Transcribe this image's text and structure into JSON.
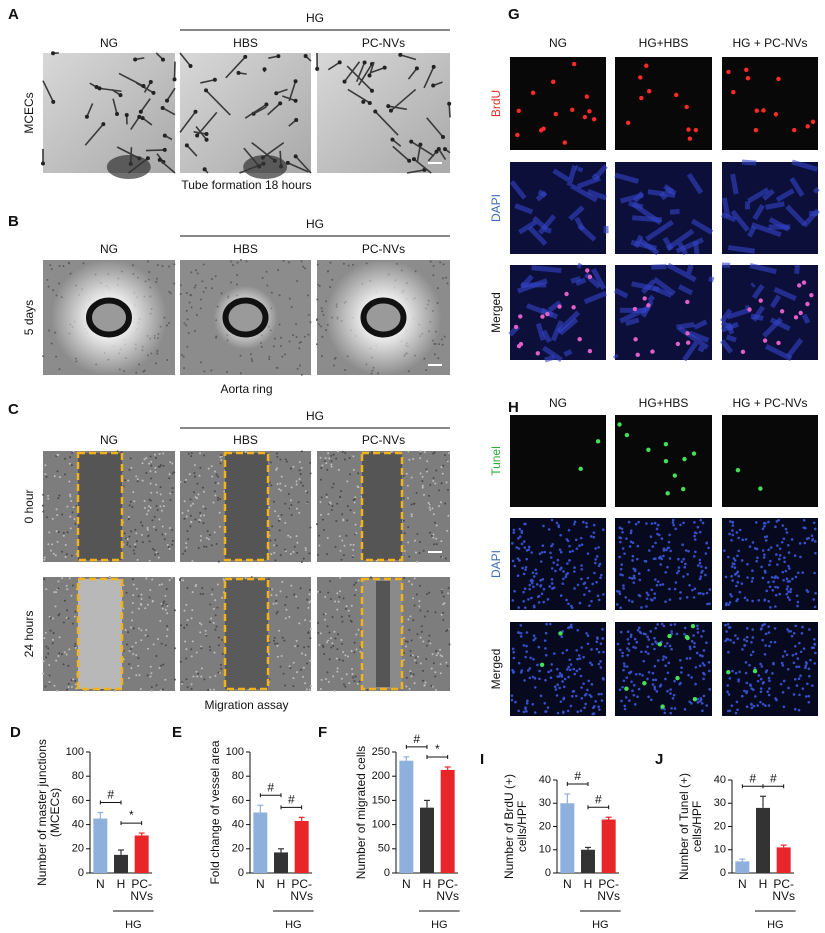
{
  "panels": [
    {
      "letter": "A",
      "group": "HG",
      "columns": [
        "NG",
        "HBS",
        "PC-NVs"
      ],
      "rows": [
        "MCECs"
      ],
      "caption": "Tube formation 18 hours"
    },
    {
      "letter": "B",
      "group": "HG",
      "columns": [
        "NG",
        "HBS",
        "PC-NVs"
      ],
      "rows": [
        "5 days"
      ],
      "caption": "Aorta ring"
    },
    {
      "letter": "C",
      "group": "HG",
      "columns": [
        "NG",
        "HBS",
        "PC-NVs"
      ],
      "rows": [
        "0 hour",
        "24 hours"
      ],
      "caption": "Migration assay"
    },
    {
      "letter": "G",
      "columns": [
        "NG",
        "HG+HBS",
        "HG + PC-NVs"
      ],
      "rows": [
        "BrdU",
        "DAPI",
        "Merged"
      ]
    },
    {
      "letter": "H",
      "columns": [
        "NG",
        "HG+HBS",
        "HG + PC-NVs"
      ],
      "rows": [
        "Tunel",
        "DAPI",
        "Merged"
      ]
    }
  ],
  "chart_data": [
    {
      "type": "bar",
      "panel": "D",
      "ylabel": [
        "Number of master junctions",
        "(MCECs)"
      ],
      "categories": [
        "N",
        "H",
        "PC-NVs"
      ],
      "group": "HG",
      "values": [
        45,
        15,
        31
      ],
      "errors": [
        5,
        4,
        2
      ],
      "colors": [
        "#8eb0dc",
        "#333333",
        "#e8262a"
      ],
      "ylim": [
        0,
        100
      ],
      "yticks": [
        0,
        20,
        40,
        60,
        80,
        100
      ],
      "comparisons": [
        {
          "label": "#",
          "between": [
            "N",
            "H"
          ]
        },
        {
          "label": "*",
          "between": [
            "H",
            "PC-NVs"
          ]
        }
      ]
    },
    {
      "type": "bar",
      "panel": "E",
      "ylabel": [
        "Fold change of vessel area"
      ],
      "categories": [
        "N",
        "H",
        "PC-NVs"
      ],
      "group": "HG",
      "values": [
        50,
        17,
        43
      ],
      "errors": [
        6,
        3,
        3
      ],
      "colors": [
        "#8eb0dc",
        "#333333",
        "#e8262a"
      ],
      "ylim": [
        0,
        100
      ],
      "yticks": [
        0,
        20,
        40,
        60,
        80,
        100
      ],
      "comparisons": [
        {
          "label": "#",
          "between": [
            "N",
            "H"
          ]
        },
        {
          "label": "#",
          "between": [
            "H",
            "PC-NVs"
          ]
        }
      ]
    },
    {
      "type": "bar",
      "panel": "F",
      "ylabel": [
        "Number of migrated cells"
      ],
      "categories": [
        "N",
        "H",
        "PC-NVs"
      ],
      "group": "HG",
      "values": [
        232,
        135,
        213
      ],
      "errors": [
        8,
        15,
        6
      ],
      "colors": [
        "#8eb0dc",
        "#333333",
        "#e8262a"
      ],
      "ylim": [
        0,
        250
      ],
      "yticks": [
        0,
        50,
        100,
        150,
        200,
        250
      ],
      "comparisons": [
        {
          "label": "#",
          "between": [
            "N",
            "H"
          ]
        },
        {
          "label": "*",
          "between": [
            "H",
            "PC-NVs"
          ]
        }
      ]
    },
    {
      "type": "bar",
      "panel": "I",
      "ylabel": [
        "Number of BrdU (+)",
        "cells/HPF"
      ],
      "categories": [
        "N",
        "H",
        "PC-NVs"
      ],
      "group": "HG",
      "values": [
        30,
        10,
        23
      ],
      "errors": [
        4,
        1,
        1
      ],
      "colors": [
        "#8eb0dc",
        "#333333",
        "#e8262a"
      ],
      "ylim": [
        0,
        40
      ],
      "yticks": [
        0,
        10,
        20,
        30,
        40
      ],
      "comparisons": [
        {
          "label": "#",
          "between": [
            "N",
            "H"
          ]
        },
        {
          "label": "#",
          "between": [
            "H",
            "PC-NVs"
          ]
        }
      ]
    },
    {
      "type": "bar",
      "panel": "J",
      "ylabel": [
        "Number of Tunel (+)",
        "cells/HPF"
      ],
      "categories": [
        "N",
        "H",
        "PC-NVs"
      ],
      "group": "HG",
      "values": [
        5,
        28,
        11
      ],
      "errors": [
        1,
        5,
        1
      ],
      "colors": [
        "#8eb0dc",
        "#333333",
        "#e8262a"
      ],
      "ylim": [
        0,
        40
      ],
      "yticks": [
        0,
        10,
        20,
        30,
        40
      ],
      "comparisons": [
        {
          "label": "#",
          "between": [
            "N",
            "H"
          ]
        },
        {
          "label": "#",
          "between": [
            "H",
            "PC-NVs"
          ]
        }
      ]
    }
  ]
}
